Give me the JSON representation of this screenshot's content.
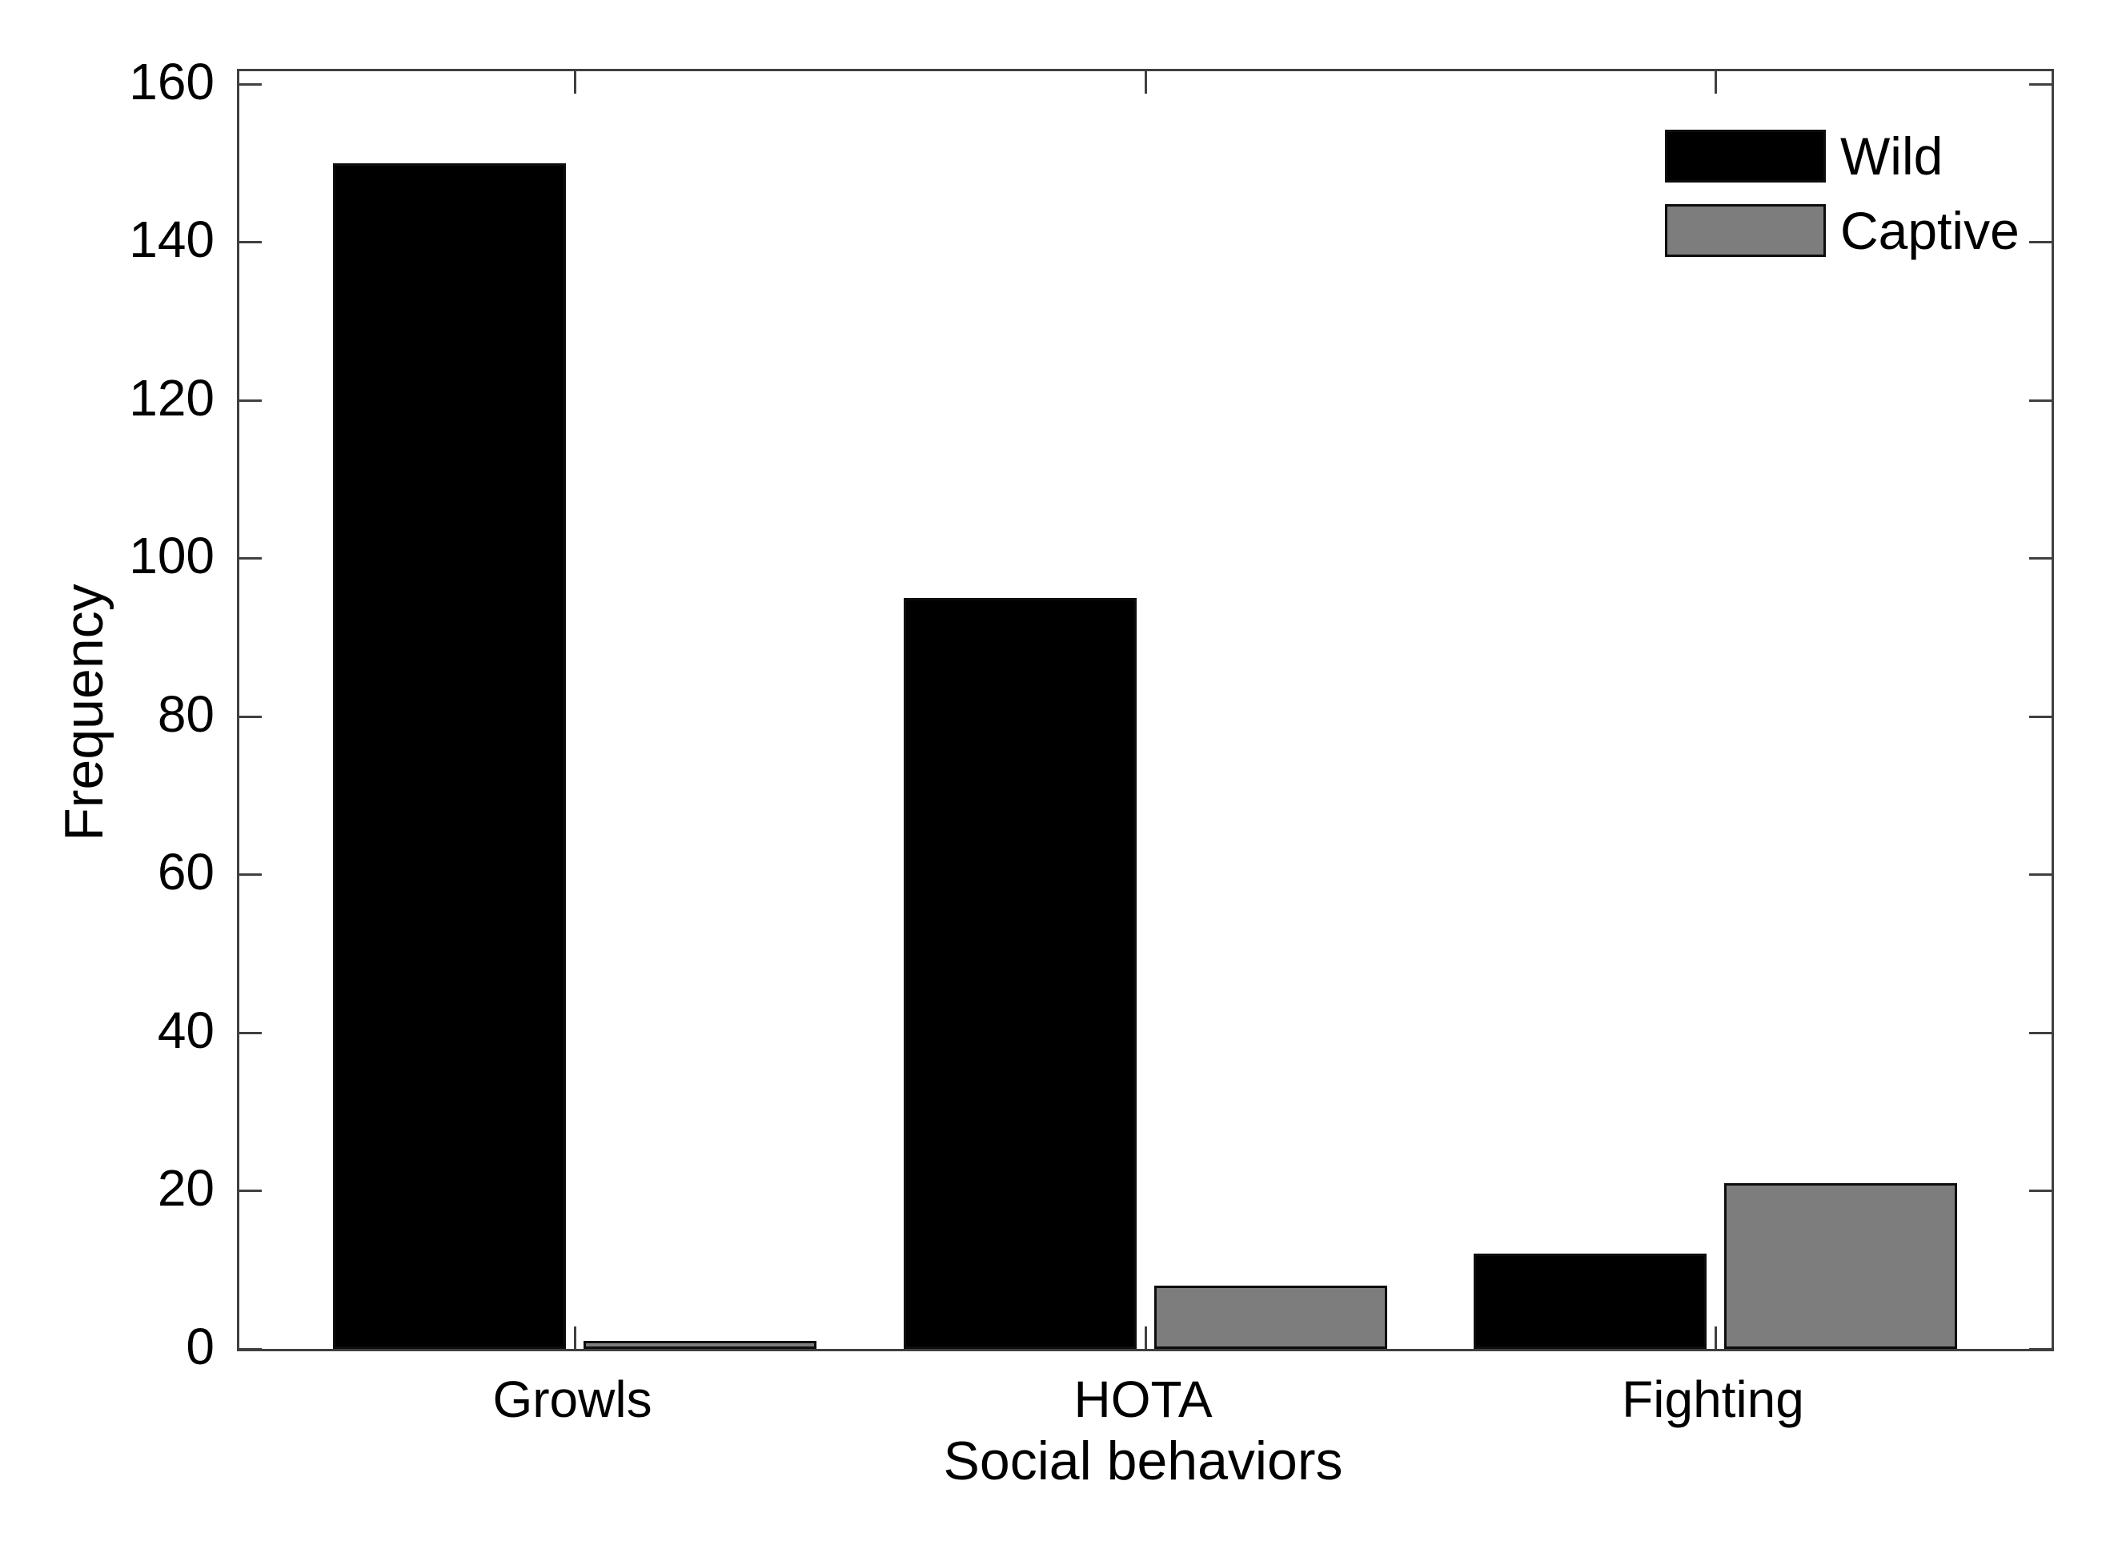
{
  "figure": {
    "background": "#ffffff"
  },
  "chart_data": {
    "type": "bar",
    "title": "",
    "xlabel": "Social behaviors",
    "ylabel": "Frequency",
    "categories": [
      "Growls",
      "HOTA",
      "Fighting"
    ],
    "series": [
      {
        "name": "Wild",
        "color": "#000000",
        "values": [
          150,
          95,
          12
        ]
      },
      {
        "name": "Captive",
        "color": "#7d7d7d",
        "values": [
          1,
          8,
          21
        ]
      }
    ],
    "ylim": [
      0,
      160
    ],
    "yticks": [
      0,
      20,
      40,
      60,
      80,
      100,
      120,
      140,
      160
    ],
    "grid": false,
    "legend_position": "top-right",
    "bar_edge_color": "#0d0d0d",
    "axis_color": "#404040"
  }
}
